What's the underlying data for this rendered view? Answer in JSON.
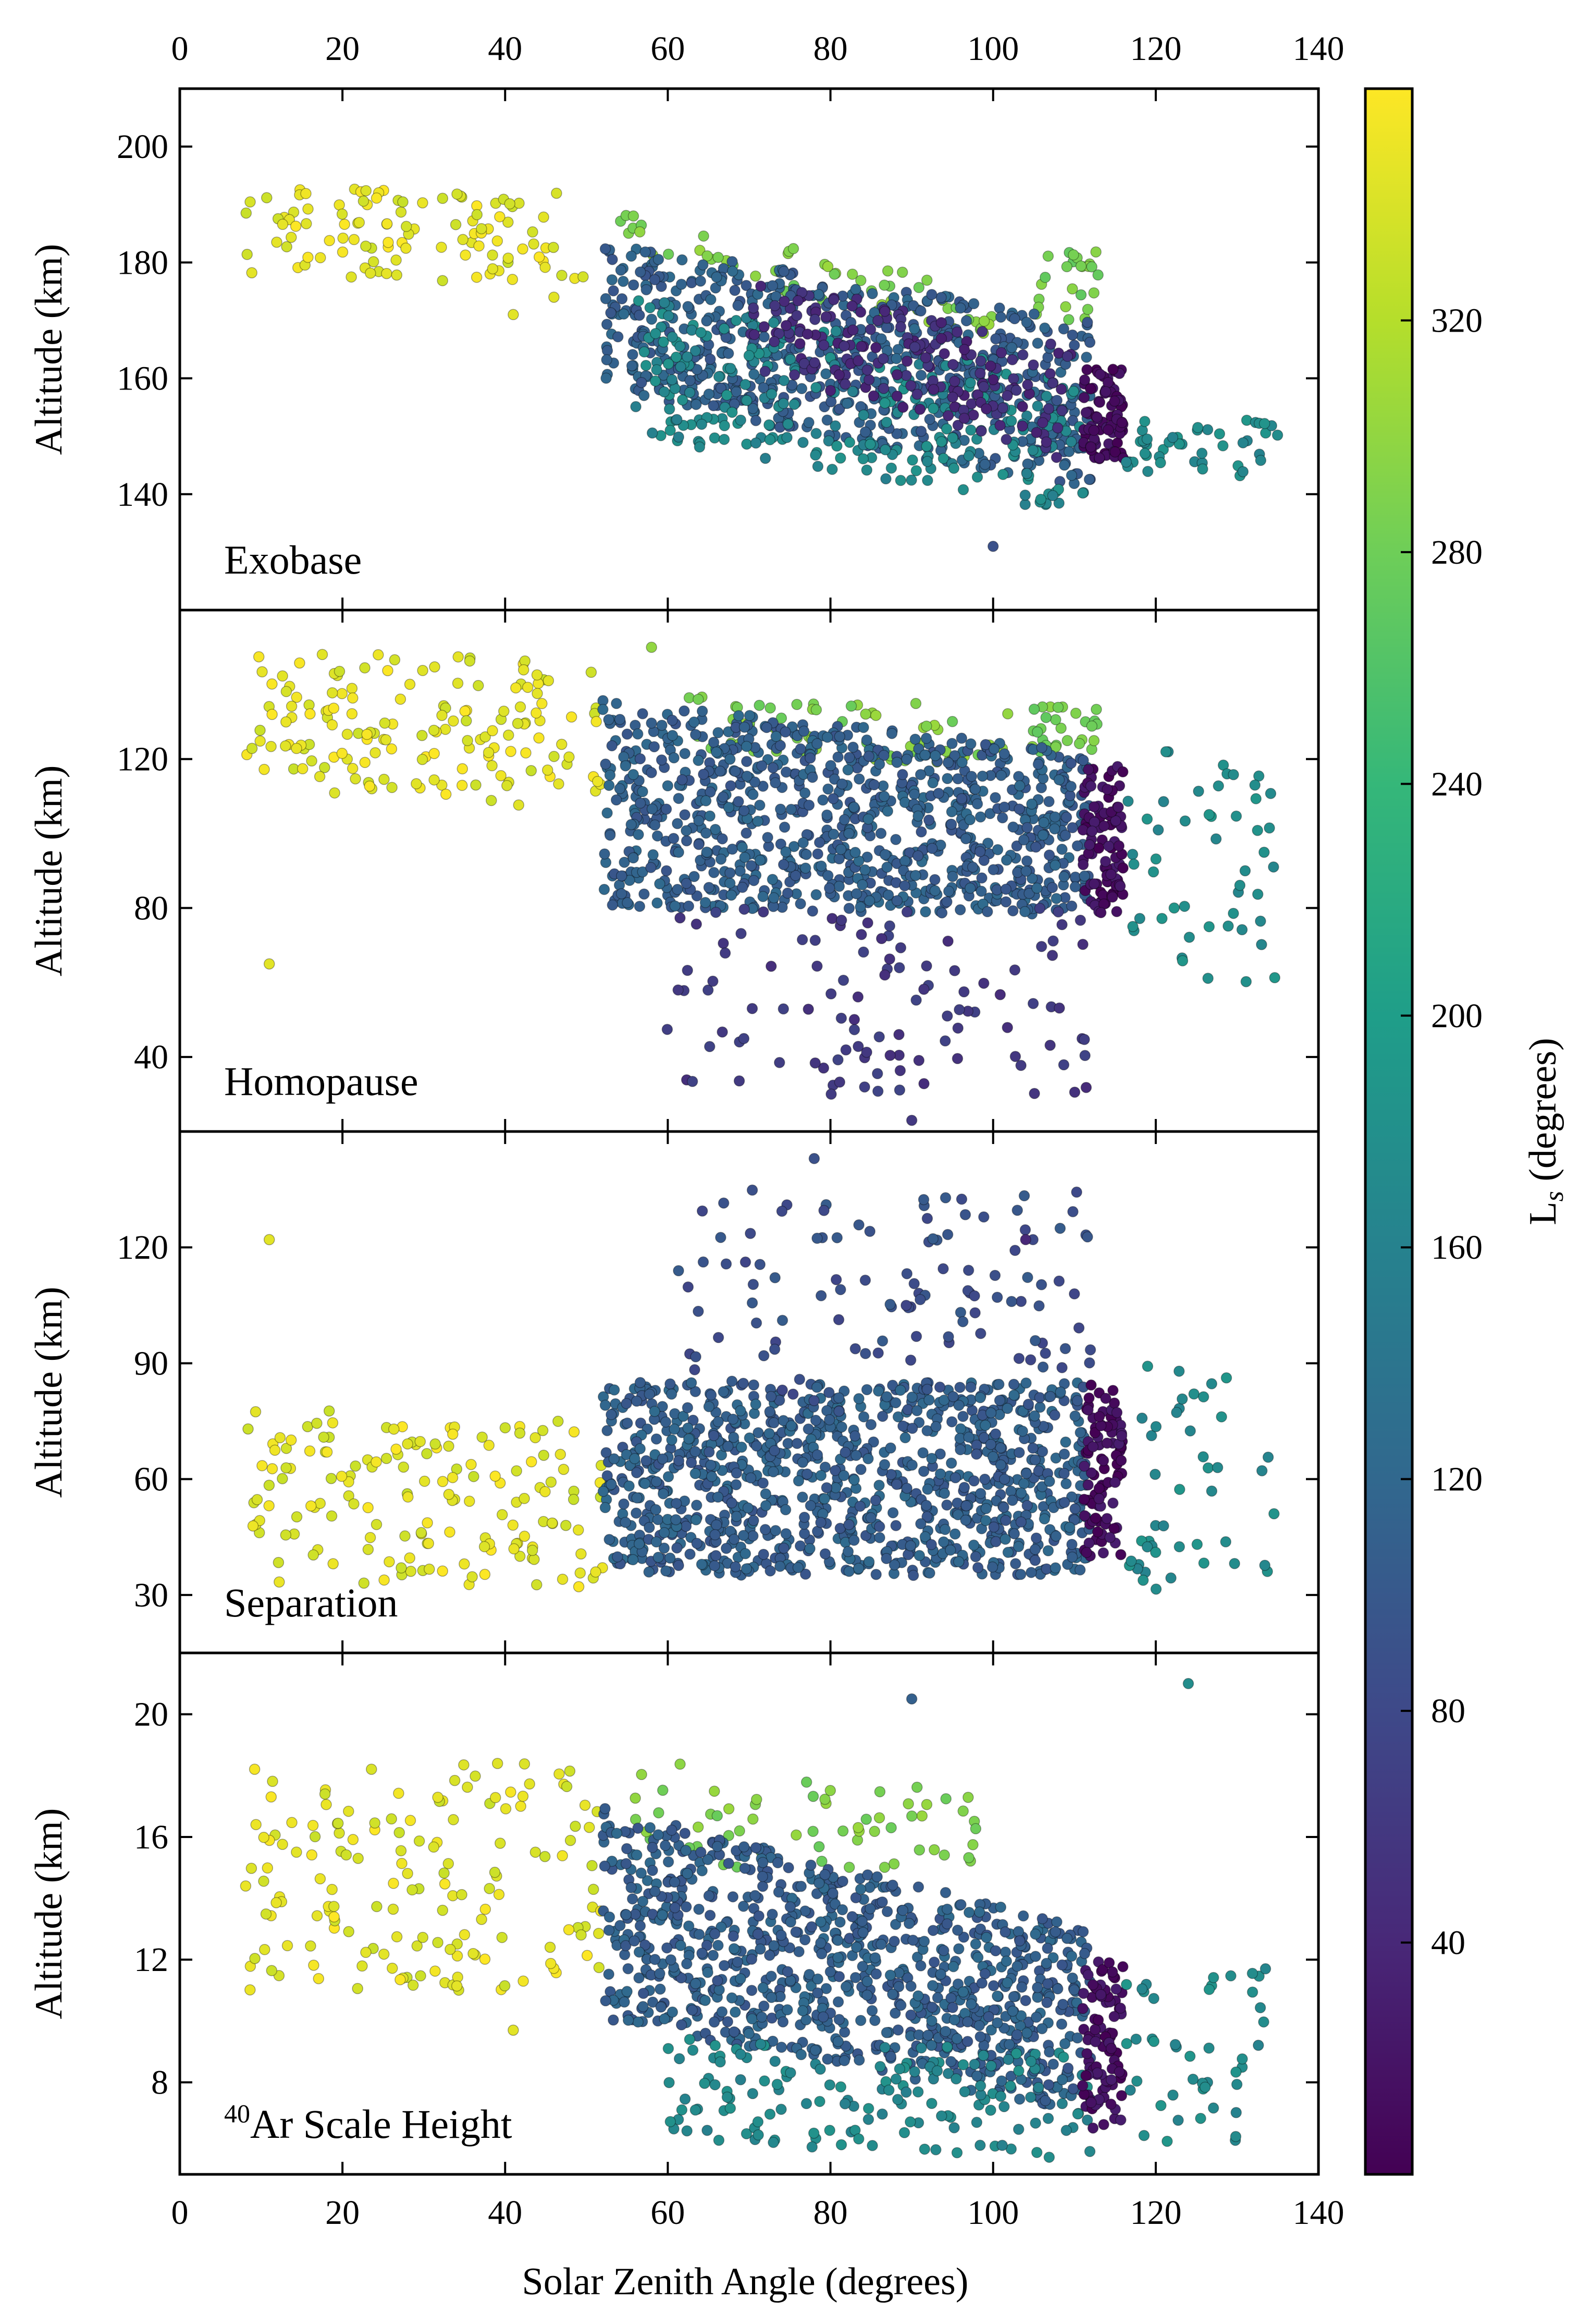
{
  "chart_data": {
    "type": "scatter",
    "shared_x_axis": {
      "label": "Solar Zenith Angle (degrees)",
      "range": [
        0,
        140
      ],
      "ticks": [
        0,
        20,
        40,
        60,
        80,
        100,
        120,
        140
      ]
    },
    "colorbar": {
      "label": "L",
      "label_subscript": "s",
      "label_suffix": " (degrees)",
      "range": [
        0,
        360
      ],
      "ticks": [
        40,
        80,
        120,
        160,
        200,
        240,
        280,
        320
      ],
      "colormap": [
        "#440154",
        "#482878",
        "#3e4989",
        "#31688e",
        "#26828e",
        "#1f9e89",
        "#35b779",
        "#6ece58",
        "#b5de2b",
        "#fde725"
      ]
    },
    "panels": [
      {
        "panel_label": "Exobase",
        "ylabel": "Altitude (km)",
        "ylim": [
          120,
          210
        ],
        "yticks": [
          140,
          160,
          180,
          200
        ],
        "clusters": [
          {
            "ls": 345,
            "x": [
              8,
              50
            ],
            "y_start": [
              178,
              194
            ],
            "y_end": [
              176,
              192
            ],
            "n": 110
          },
          {
            "ls": 290,
            "x": [
              54,
              100
            ],
            "y_start": [
              181,
              189
            ],
            "y_end": [
              167,
              175
            ],
            "n": 60
          },
          {
            "ls": 285,
            "x": [
              104,
              113
            ],
            "y_start": [
              170,
              182
            ],
            "y_end": [
              170,
              182
            ],
            "n": 25
          },
          {
            "ls": 110,
            "x": [
              52,
              112
            ],
            "y_start": [
              158,
              184
            ],
            "y_end": [
              140,
              170
            ],
            "n": 650
          },
          {
            "ls": 170,
            "x": [
              56,
              112
            ],
            "y_start": [
              150,
              175
            ],
            "y_end": [
              136,
              160
            ],
            "n": 250
          },
          {
            "ls": 45,
            "x": [
              70,
              110
            ],
            "y_start": [
              162,
              178
            ],
            "y_end": [
              145,
              165
            ],
            "n": 180
          },
          {
            "ls": 12,
            "x": [
              111,
              116
            ],
            "y_start": [
              146,
              162
            ],
            "y_end": [
              146,
              162
            ],
            "n": 90
          },
          {
            "ls": 175,
            "x": [
              116,
              135
            ],
            "y_start": [
              143,
              153
            ],
            "y_end": [
              143,
              153
            ],
            "n": 45
          }
        ],
        "points": [
          {
            "x": 100,
            "y": 131,
            "ls": 90
          },
          {
            "x": 41,
            "y": 171,
            "ls": 345
          },
          {
            "x": 46,
            "y": 174,
            "ls": 345
          }
        ]
      },
      {
        "panel_label": "Homopause",
        "ylabel": "Altitude (km)",
        "ylim": [
          20,
          160
        ],
        "yticks": [
          40,
          80,
          120
        ],
        "clusters": [
          {
            "ls": 345,
            "x": [
              8,
              52
            ],
            "y_start": [
              112,
              152
            ],
            "y_end": [
              105,
              145
            ],
            "n": 160
          },
          {
            "ls": 290,
            "x": [
              62,
              102
            ],
            "y_start": [
              122,
              138
            ],
            "y_end": [
              118,
              134
            ],
            "n": 60
          },
          {
            "ls": 285,
            "x": [
              104,
              113
            ],
            "y_start": [
              122,
              134
            ],
            "y_end": [
              122,
              134
            ],
            "n": 30
          },
          {
            "ls": 110,
            "x": [
              52,
              112
            ],
            "y_start": [
              80,
              136
            ],
            "y_end": [
              78,
              122
            ],
            "n": 900
          },
          {
            "ls": 60,
            "x": [
              58,
              112
            ],
            "y_start": [
              30,
              80
            ],
            "y_end": [
              30,
              80
            ],
            "n": 110
          },
          {
            "ls": 14,
            "x": [
              111,
              116
            ],
            "y_start": [
              78,
              118
            ],
            "y_end": [
              78,
              118
            ],
            "n": 100
          },
          {
            "ls": 175,
            "x": [
              116,
              135
            ],
            "y_start": [
              60,
              122
            ],
            "y_end": [
              60,
              122
            ],
            "n": 50
          }
        ],
        "points": [
          {
            "x": 11,
            "y": 65,
            "ls": 345
          },
          {
            "x": 90,
            "y": 23,
            "ls": 60
          },
          {
            "x": 58,
            "y": 150,
            "ls": 300
          }
        ]
      },
      {
        "panel_label": "Separation",
        "ylabel": "Altitude (km)",
        "ylim": [
          15,
          150
        ],
        "yticks": [
          30,
          60,
          90,
          120
        ],
        "clusters": [
          {
            "ls": 345,
            "x": [
              8,
              52
            ],
            "y_start": [
              32,
              78
            ],
            "y_end": [
              32,
              78
            ],
            "n": 160
          },
          {
            "ls": 110,
            "x": [
              52,
              112
            ],
            "y_start": [
              35,
              85
            ],
            "y_end": [
              35,
              85
            ],
            "n": 1000
          },
          {
            "ls": 90,
            "x": [
              60,
              112
            ],
            "y_start": [
              80,
              135
            ],
            "y_end": [
              80,
              135
            ],
            "n": 120
          },
          {
            "ls": 14,
            "x": [
              111,
              116
            ],
            "y_start": [
              40,
              85
            ],
            "y_end": [
              40,
              85
            ],
            "n": 90
          },
          {
            "ls": 175,
            "x": [
              116,
              135
            ],
            "y_start": [
              25,
              90
            ],
            "y_end": [
              25,
              90
            ],
            "n": 45
          }
        ],
        "points": [
          {
            "x": 11,
            "y": 122,
            "ls": 345
          },
          {
            "x": 78,
            "y": 143,
            "ls": 90
          },
          {
            "x": 104,
            "y": 122,
            "ls": 40
          }
        ]
      },
      {
        "panel_label": "Ar Scale Height",
        "panel_label_superscript": "40",
        "ylabel": "Altitude (km)",
        "ylim": [
          5,
          22
        ],
        "yticks": [
          8,
          12,
          16,
          20
        ],
        "clusters": [
          {
            "ls": 345,
            "x": [
              8,
              52
            ],
            "y_start": [
              11,
              18.5
            ],
            "y_end": [
              11,
              18.5
            ],
            "n": 160
          },
          {
            "ls": 290,
            "x": [
              56,
              100
            ],
            "y_start": [
              15,
              18.5
            ],
            "y_end": [
              15,
              17.5
            ],
            "n": 60
          },
          {
            "ls": 110,
            "x": [
              52,
              112
            ],
            "y_start": [
              10,
              17
            ],
            "y_end": [
              7,
              13
            ],
            "n": 900
          },
          {
            "ls": 170,
            "x": [
              60,
              112
            ],
            "y_start": [
              6,
              9.5
            ],
            "y_end": [
              5.5,
              9
            ],
            "n": 150
          },
          {
            "ls": 14,
            "x": [
              111,
              116
            ],
            "y_start": [
              6.5,
              12
            ],
            "y_end": [
              6.5,
              12
            ],
            "n": 90
          },
          {
            "ls": 175,
            "x": [
              116,
              135
            ],
            "y_start": [
              6,
              12
            ],
            "y_end": [
              6,
              12
            ],
            "n": 45
          }
        ],
        "points": [
          {
            "x": 124,
            "y": 21,
            "ls": 175
          },
          {
            "x": 41,
            "y": 9.7,
            "ls": 345
          },
          {
            "x": 90,
            "y": 20.5,
            "ls": 110
          }
        ]
      }
    ]
  }
}
